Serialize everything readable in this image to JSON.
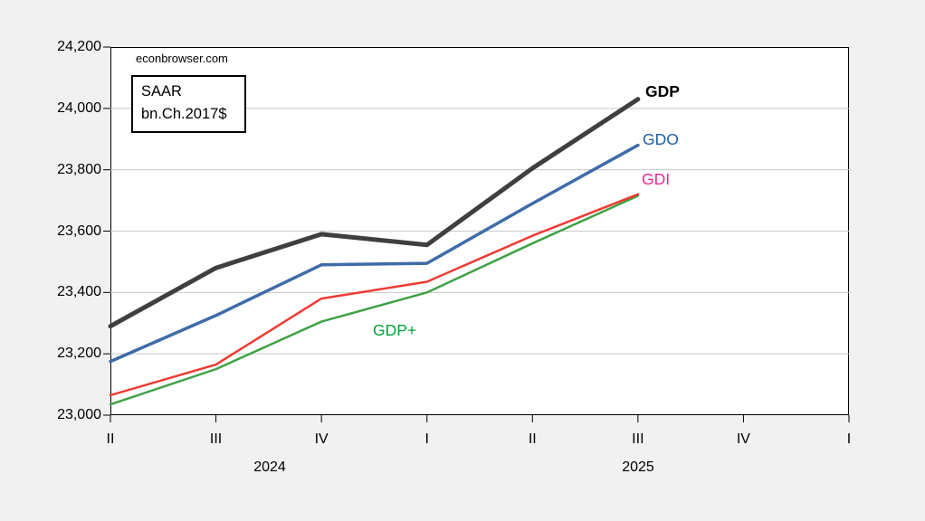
{
  "chart_data": {
    "type": "line",
    "watermark": "econbrowser.com",
    "note_box_lines": [
      "SAAR",
      "bn.Ch.2017$"
    ],
    "x_tick_labels": [
      "II",
      "III",
      "IV",
      "I",
      "II",
      "III",
      "IV",
      "I"
    ],
    "year_labels": [
      "2024",
      "2025"
    ],
    "categories": [
      "2024Q2",
      "2024Q3",
      "2024Q4",
      "2025Q1",
      "2025Q2",
      "2025Q3"
    ],
    "ylim": [
      23000,
      24200
    ],
    "y_ticks": [
      24200,
      24000,
      23800,
      23600,
      23400,
      23200,
      23000
    ],
    "y_tick_labels": [
      "24,200",
      "24,000",
      "23,800",
      "23,600",
      "23,400",
      "23,200",
      "23,000"
    ],
    "grid": "horizontal",
    "legend_position": "inline-end-labels",
    "colors": {
      "background": "#f1f1f1",
      "plot_background": "#ffffff",
      "gridline": "#c8c8c8",
      "axis": "#000000"
    },
    "series": [
      {
        "name": "GDP",
        "label": "GDP",
        "values": [
          23290,
          23480,
          23590,
          23555,
          23805,
          24030
        ],
        "color": "#3f3f3f",
        "label_color": "#000000",
        "label_bold": true,
        "width": 5
      },
      {
        "name": "GDO",
        "label": "GDO",
        "values": [
          23175,
          23325,
          23490,
          23495,
          23690,
          23880
        ],
        "color": "#3e6ca8",
        "label_color": "#1e5ea6",
        "label_bold": false,
        "width": 3.5
      },
      {
        "name": "GDI",
        "label": "GDI",
        "values": [
          23065,
          23165,
          23380,
          23435,
          23585,
          23720
        ],
        "color": "#ee3b33",
        "label_color": "#f2258c",
        "label_bold": false,
        "width": 2.5
      },
      {
        "name": "GDP+",
        "label": "GDP+",
        "values": [
          23035,
          23150,
          23305,
          23400,
          23560,
          23715
        ],
        "color": "#3fa245",
        "label_color": "#00a33c",
        "label_bold": false,
        "width": 2.5
      }
    ]
  }
}
